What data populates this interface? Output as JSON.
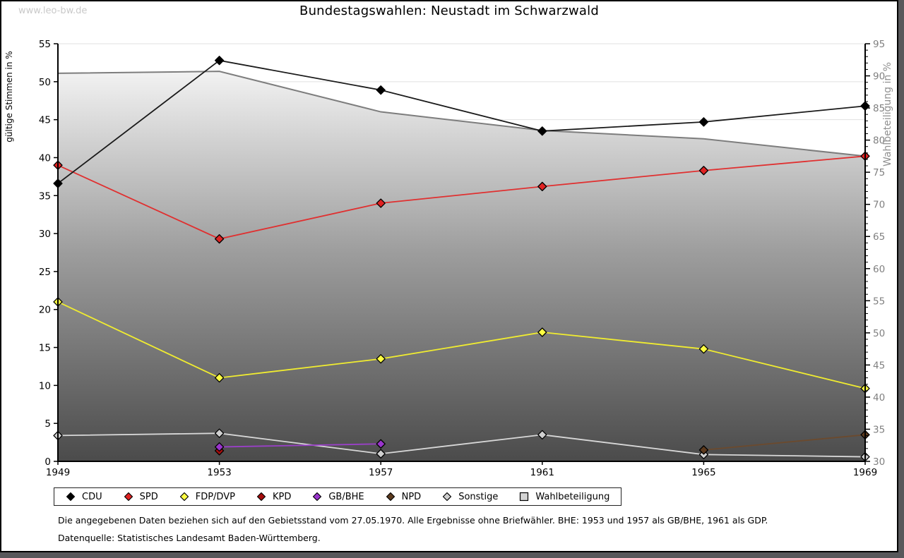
{
  "watermark": "www.leo-bw.de",
  "title": "Bundestagswahlen: Neustadt im Schwarzwald",
  "chart_data": {
    "type": "line",
    "title": "Bundestagswahlen: Neustadt im Schwarzwald",
    "x": [
      1949,
      1953,
      1957,
      1961,
      1965,
      1969
    ],
    "left_axis": {
      "label": "gültige Stimmen in %",
      "min": 0,
      "max": 55,
      "tick_step": 5
    },
    "right_axis": {
      "label": "Wahlbeteiligung in %",
      "min": 30,
      "max": 95,
      "tick_step": 5,
      "minor_step": 1
    },
    "grid": "horizontal, every 5 units, light gray",
    "legend_position": "bottom",
    "series": [
      {
        "name": "CDU",
        "axis": "left",
        "style": "line",
        "color": "#000000",
        "line_color": "#1a1a1a",
        "values": [
          36.6,
          52.8,
          48.9,
          43.5,
          44.7,
          46.8
        ]
      },
      {
        "name": "SPD",
        "axis": "left",
        "style": "line",
        "color": "#e02222",
        "line_color": "#e03030",
        "values": [
          39.0,
          29.3,
          34.0,
          36.2,
          38.3,
          40.2
        ]
      },
      {
        "name": "FDP/DVP",
        "axis": "left",
        "style": "line",
        "color": "#ffff42",
        "line_color": "#f0ec30",
        "values": [
          21.0,
          11.0,
          13.5,
          17.0,
          14.8,
          9.6
        ]
      },
      {
        "name": "KPD",
        "axis": "left",
        "style": "line",
        "color": "#a50c0c",
        "line_color": "#a50c0c",
        "values": [
          null,
          1.4,
          null,
          null,
          null,
          null
        ]
      },
      {
        "name": "GB/BHE",
        "axis": "left",
        "style": "line",
        "color": "#9934cc",
        "line_color": "#9a40c8",
        "values": [
          null,
          1.9,
          2.3,
          null,
          null,
          null
        ]
      },
      {
        "name": "NPD",
        "axis": "left",
        "style": "line",
        "color": "#5c3a1e",
        "line_color": "#6b4a2e",
        "values": [
          null,
          null,
          null,
          null,
          1.5,
          3.5
        ]
      },
      {
        "name": "Sonstige",
        "axis": "left",
        "style": "line",
        "color": "#cfcfcf",
        "line_color": "#d8d8d8",
        "values": [
          3.4,
          3.7,
          1.0,
          3.5,
          0.9,
          0.6
        ]
      },
      {
        "name": "Wahlbeteiligung",
        "axis": "right",
        "style": "area",
        "color": "#d4d4d4",
        "line_color": "#7d7d7d",
        "values": [
          90.4,
          90.7,
          84.4,
          81.5,
          80.2,
          77.5
        ]
      }
    ],
    "area_gradient": {
      "top": "#ffffff",
      "mid": "#9d9d9d",
      "bottom": "#4b4b4b"
    },
    "colors": {
      "grid": "#e0e0e0",
      "axis": "#000000",
      "right_axis_text": "#808080"
    }
  },
  "footnotes": [
    "Die angegebenen Daten beziehen sich auf den Gebietsstand vom 27.05.1970. Alle Ergebnisse ohne Briefwähler. BHE: 1953 und 1957 als GB/BHE, 1961 als GDP.",
    "Datenquelle: Statistisches Landesamt Baden-Württemberg."
  ]
}
